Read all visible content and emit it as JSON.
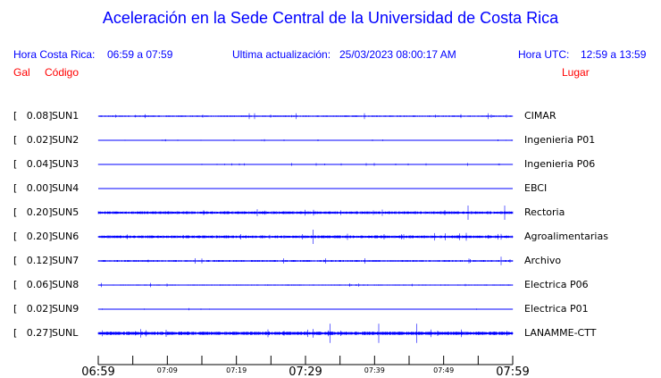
{
  "title": "Aceleración en la Sede Central de la Universidad de Costa Rica",
  "header": {
    "cr_label": "Hora Costa Rica:",
    "cr_range": "06:59 a 07:59",
    "update_label": "Ultima actualización:",
    "update_value": "25/03/2023 08:00:17 AM",
    "utc_label": "Hora UTC:",
    "utc_range": "12:59 a 13:59",
    "col_gal": "Gal",
    "col_codigo": "Código",
    "col_lugar": "Lugar"
  },
  "colors": {
    "trace": "#0000ff",
    "header": "#0000ff",
    "columns": "#ff0000"
  },
  "chart_data": {
    "type": "line",
    "title": "Aceleración en la Sede Central de la Universidad de Costa Rica",
    "xlim": [
      "06:59",
      "07:59"
    ],
    "x_ticks_major": [
      "06:59",
      "07:29",
      "07:59"
    ],
    "x_ticks_minor": [
      "07:09",
      "07:19",
      "07:39",
      "07:49"
    ],
    "stations": [
      {
        "gal": "[   0.08]",
        "code": "SUN1",
        "place": "CIMAR",
        "peak": 0.08
      },
      {
        "gal": "[   0.02]",
        "code": "SUN2",
        "place": "Ingenieria P01",
        "peak": 0.02
      },
      {
        "gal": "[   0.04]",
        "code": "SUN3",
        "place": "Ingenieria P06",
        "peak": 0.04
      },
      {
        "gal": "[   0.00]",
        "code": "SUN4",
        "place": "EBCI",
        "peak": 0.0
      },
      {
        "gal": "[   0.20]",
        "code": "SUN5",
        "place": "Rectoria",
        "peak": 0.2
      },
      {
        "gal": "[   0.20]",
        "code": "SUN6",
        "place": "Agroalimentarias",
        "peak": 0.2
      },
      {
        "gal": "[   0.12]",
        "code": "SUN7",
        "place": "Archivo",
        "peak": 0.12
      },
      {
        "gal": "[   0.06]",
        "code": "SUN8",
        "place": "Electrica P06",
        "peak": 0.06
      },
      {
        "gal": "[   0.02]",
        "code": "SUN9",
        "place": "Electrica P01",
        "peak": 0.02
      },
      {
        "gal": "[   0.27]",
        "code": "SUNL",
        "place": "LANAMME-CTT",
        "peak": 0.27
      }
    ]
  }
}
